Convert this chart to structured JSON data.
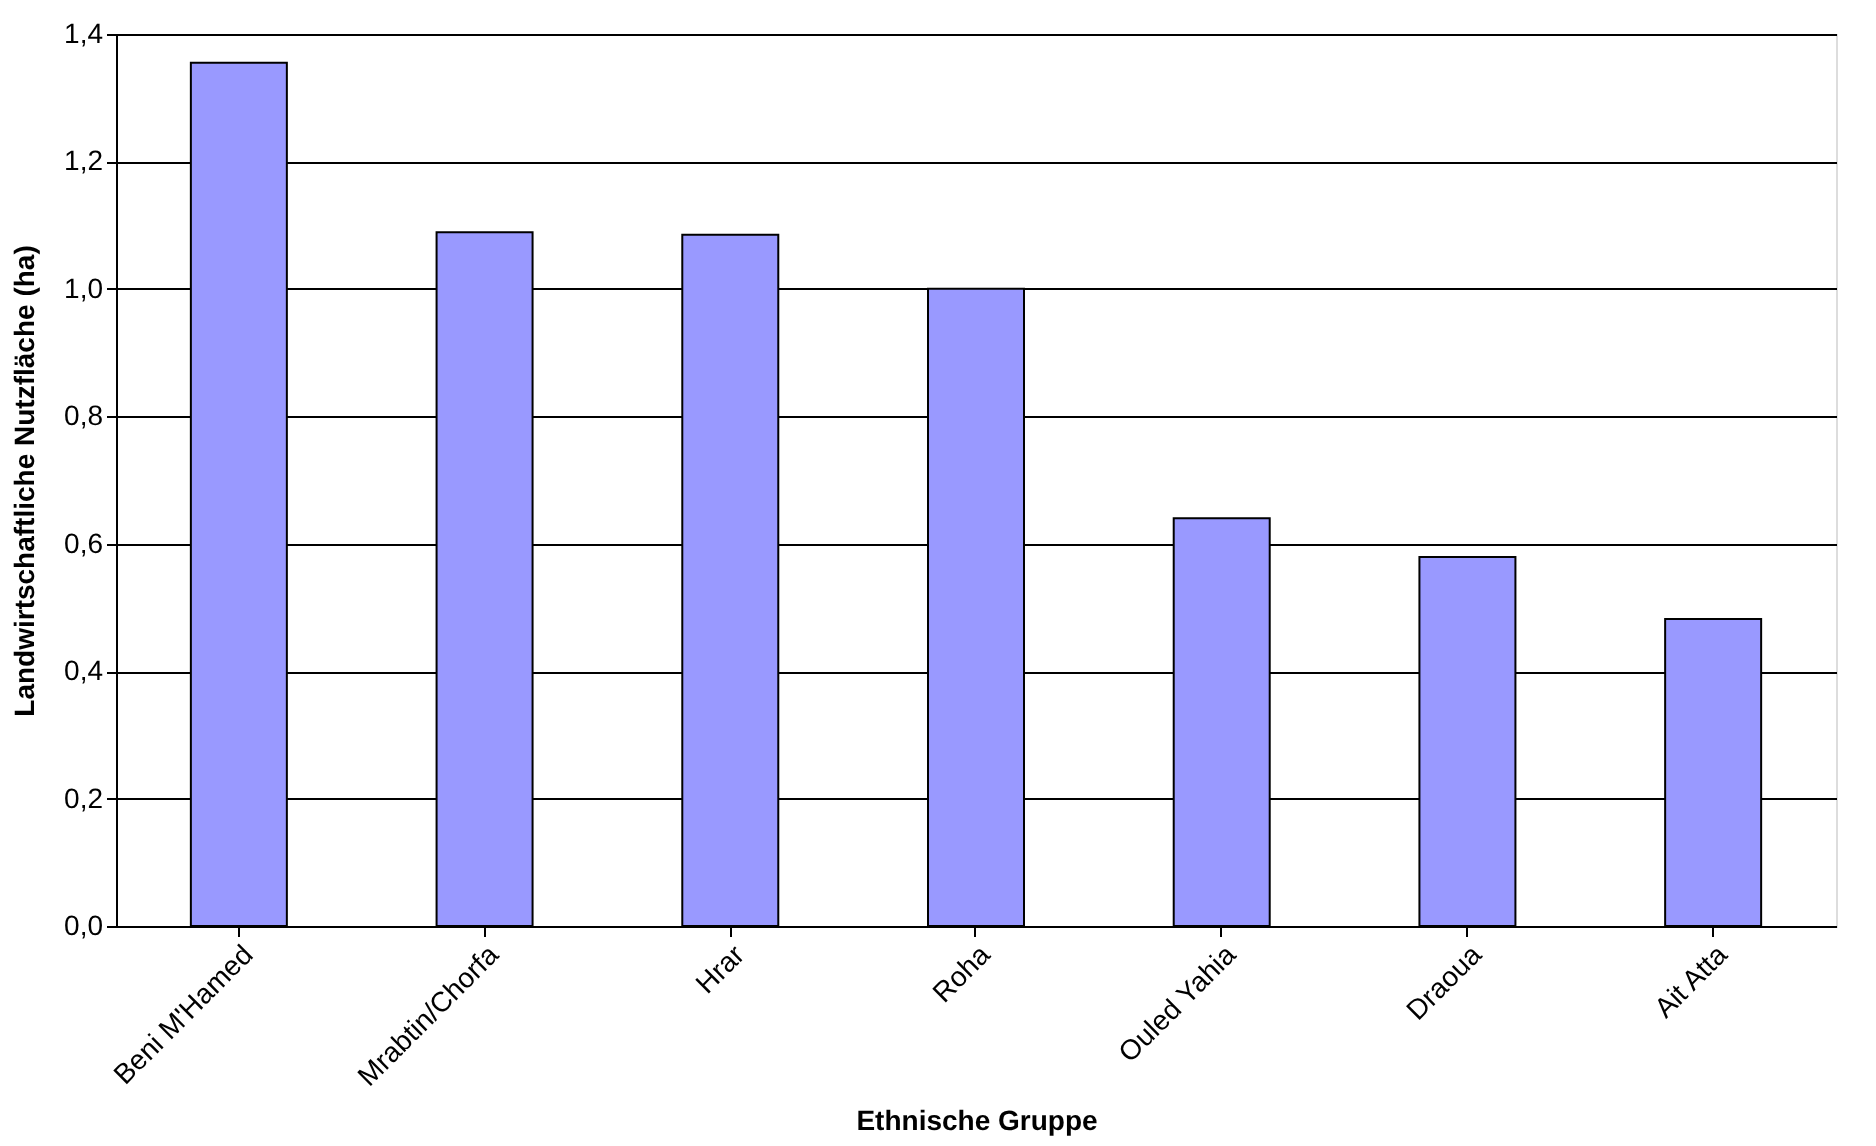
{
  "chart_data": {
    "type": "bar",
    "xlabel": "Ethnische Gruppe",
    "ylabel": "Landwirtschaftliche Nutzfläche (ha)",
    "categories": [
      "Beni M'Hamed",
      "Mrabtin/Chorfa",
      "Hrar",
      "Roha",
      "Ouled Yahia",
      "Draoua",
      "Ait Atta"
    ],
    "values": [
      1.355,
      1.089,
      1.085,
      1.0,
      0.64,
      0.579,
      0.482
    ],
    "color": "#9999ff",
    "ylim": [
      0,
      1.4
    ],
    "yticks": [
      {
        "value": 0,
        "label": "0,0"
      },
      {
        "value": 0.2,
        "label": "0,2"
      },
      {
        "value": 0.4,
        "label": "0,4"
      },
      {
        "value": 0.6,
        "label": "0,6"
      },
      {
        "value": 0.8,
        "label": "0,8"
      },
      {
        "value": 1.0,
        "label": "1,0"
      },
      {
        "value": 1.2,
        "label": "1,2"
      },
      {
        "value": 1.4,
        "label": "1,4"
      }
    ],
    "grid": "y"
  }
}
